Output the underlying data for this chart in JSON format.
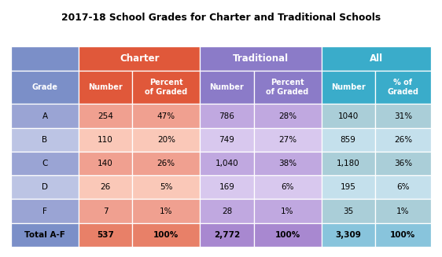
{
  "title": "2017-18 School Grades for Charter and Traditional Schools",
  "col_headers": [
    "Grade",
    "Number",
    "Percent\nof Graded",
    "Number",
    "Percent\nof Graded",
    "Number",
    "% of\nGraded"
  ],
  "col_header_colors": [
    "#7B8FC8",
    "#E0583A",
    "#E0583A",
    "#8B7BC8",
    "#8B7BC8",
    "#3AACCA",
    "#3AACCA"
  ],
  "group_labels": [
    "Charter",
    "Traditional",
    "All"
  ],
  "group_colors": [
    "#E0583A",
    "#8B7BC8",
    "#3AACCA"
  ],
  "rows": [
    [
      "A",
      "254",
      "47%",
      "786",
      "28%",
      "1040",
      "31%"
    ],
    [
      "B",
      "110",
      "20%",
      "749",
      "27%",
      "859",
      "26%"
    ],
    [
      "C",
      "140",
      "26%",
      "1,040",
      "38%",
      "1,180",
      "36%"
    ],
    [
      "D",
      "26",
      "5%",
      "169",
      "6%",
      "195",
      "6%"
    ],
    [
      "F",
      "7",
      "1%",
      "28",
      "1%",
      "35",
      "1%"
    ],
    [
      "Total A-F",
      "537",
      "100%",
      "2,772",
      "100%",
      "3,309",
      "100%"
    ]
  ],
  "grade_colors": [
    "#9AA4D4",
    "#BCC4E4"
  ],
  "charter_colors": [
    "#F0A090",
    "#FAC8B8"
  ],
  "trad_colors": [
    "#C0A8E0",
    "#D8C8EE"
  ],
  "all_colors": [
    "#AACED8",
    "#C4E0EC"
  ],
  "total_grade_color": "#7B8FC8",
  "total_charter_color": "#E88068",
  "total_trad_color": "#A888D0",
  "total_all_color": "#88C4DC",
  "background_color": "#FFFFFF"
}
